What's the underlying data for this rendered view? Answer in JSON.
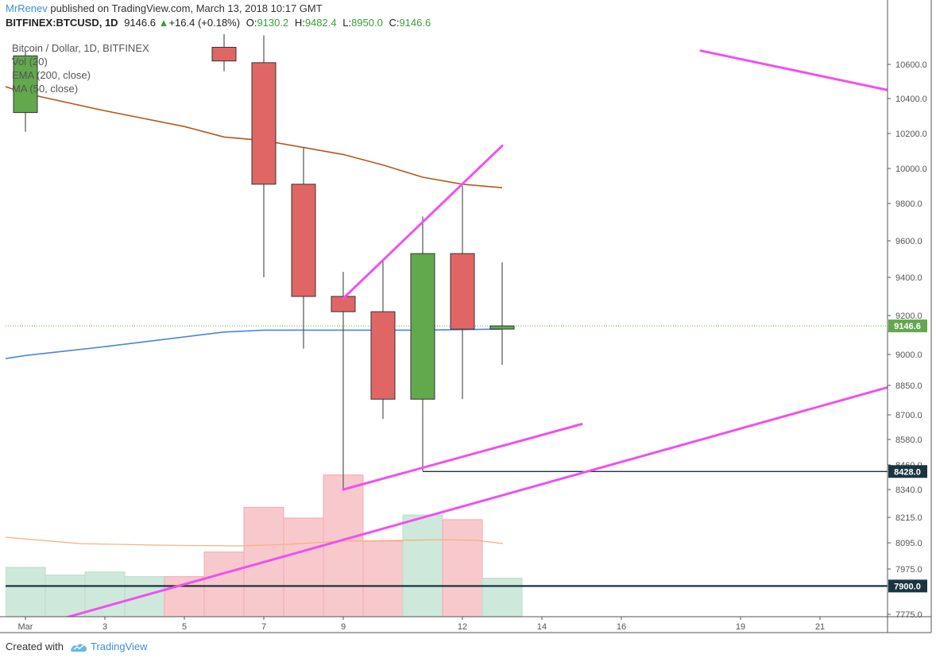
{
  "header": {
    "author": "MrRenev",
    "published_text": "published on TradingView.com, March 13, 2018 10:17 GMT",
    "symbol": "BITFINEX:BTCUSD, 1D",
    "last": "9146.6",
    "change": "+16.4 (+0.18%)",
    "open_label": "O:",
    "open": "9130.2",
    "high_label": "H:",
    "high": "9482.4",
    "low_label": "L:",
    "low": "8950.0",
    "close_label": "C:",
    "close": "9146.6"
  },
  "legend": {
    "line1": "Bitcoin / Dollar, 1D, BITFINEX",
    "line2": "Vol (20)",
    "line3": "EMA (200, close)",
    "line4": "MA (50, close)"
  },
  "footer": {
    "created_with": "Created with",
    "brand": "TradingView"
  },
  "colors": {
    "up": "#62a84d",
    "down": "#e06666",
    "wick": "#555555",
    "ema": "#b8571a",
    "ma": "#4a86d9",
    "trend": "#f050f0",
    "level": "#1a3540",
    "vol_up": "#cfe8dc",
    "vol_down": "#f8c9cc",
    "vol_ma": "#f5b07a"
  },
  "chart_data": {
    "type": "candlestick",
    "x_ticks": [
      "Mar",
      "3",
      "5",
      "7",
      "9",
      "12",
      "14",
      "16",
      "19",
      "21"
    ],
    "y_ticks": [
      "10600.0",
      "10400.0",
      "10200.0",
      "10000.0",
      "9800.0",
      "9600.0",
      "9400.0",
      "9200.0",
      "9000.0",
      "8850.0",
      "8700.0",
      "8580.0",
      "8460.0",
      "8340.0",
      "8215.0",
      "8095.0",
      "7975.0",
      "7775.0"
    ],
    "candles": [
      {
        "date": "Mar 1",
        "open": 10320,
        "high": 10680,
        "low": 10210,
        "close": 10650
      },
      {
        "date": "Mar 6",
        "open": 10700,
        "high": 10780,
        "low": 10560,
        "close": 10620
      },
      {
        "date": "Mar 7",
        "open": 10610,
        "high": 10770,
        "low": 9400,
        "close": 9910
      },
      {
        "date": "Mar 8",
        "open": 9910,
        "high": 10120,
        "low": 9030,
        "close": 9300
      },
      {
        "date": "Mar 9",
        "open": 9300,
        "high": 9430,
        "low": 8340,
        "close": 9220
      },
      {
        "date": "Mar 10",
        "open": 9220,
        "high": 9500,
        "low": 8680,
        "close": 8780
      },
      {
        "date": "Mar 11",
        "open": 8780,
        "high": 9730,
        "low": 8430,
        "close": 9530
      },
      {
        "date": "Mar 12",
        "open": 9530,
        "high": 9900,
        "low": 8780,
        "close": 9130
      },
      {
        "date": "Mar 13",
        "open": 9130.2,
        "high": 9482.4,
        "low": 8950.0,
        "close": 9146.6
      }
    ],
    "volume": [
      {
        "date": "Mar 1",
        "dir": "up",
        "rel": 0.32
      },
      {
        "date": "Mar 2",
        "dir": "up",
        "rel": 0.27
      },
      {
        "date": "Mar 3",
        "dir": "up",
        "rel": 0.29
      },
      {
        "date": "Mar 4",
        "dir": "up",
        "rel": 0.26
      },
      {
        "date": "Mar 5",
        "dir": "down",
        "rel": 0.26
      },
      {
        "date": "Mar 6",
        "dir": "down",
        "rel": 0.42
      },
      {
        "date": "Mar 7",
        "dir": "down",
        "rel": 0.71
      },
      {
        "date": "Mar 8",
        "dir": "down",
        "rel": 0.64
      },
      {
        "date": "Mar 9",
        "dir": "down",
        "rel": 0.92
      },
      {
        "date": "Mar 10",
        "dir": "down",
        "rel": 0.49
      },
      {
        "date": "Mar 11",
        "dir": "up",
        "rel": 0.66
      },
      {
        "date": "Mar 12",
        "dir": "down",
        "rel": 0.63
      },
      {
        "date": "Mar 13",
        "dir": "up",
        "rel": 0.25
      }
    ],
    "ema_200": [
      {
        "date": "Feb 28",
        "value": 10470
      },
      {
        "date": "Mar 1",
        "value": 10430
      },
      {
        "date": "Mar 3",
        "value": 10330
      },
      {
        "date": "Mar 5",
        "value": 10240
      },
      {
        "date": "Mar 6",
        "value": 10180
      },
      {
        "date": "Mar 7",
        "value": 10160
      },
      {
        "date": "Mar 8",
        "value": 10120
      },
      {
        "date": "Mar 9",
        "value": 10080
      },
      {
        "date": "Mar 10",
        "value": 10020
      },
      {
        "date": "Mar 11",
        "value": 9950
      },
      {
        "date": "Mar 12",
        "value": 9910
      },
      {
        "date": "Mar 13",
        "value": 9890
      }
    ],
    "ma_50": [
      {
        "date": "Feb 28",
        "value": 8980
      },
      {
        "date": "Mar 1",
        "value": 8995
      },
      {
        "date": "Mar 3",
        "value": 9040
      },
      {
        "date": "Mar 5",
        "value": 9090
      },
      {
        "date": "Mar 6",
        "value": 9115
      },
      {
        "date": "Mar 7",
        "value": 9125
      },
      {
        "date": "Mar 9",
        "value": 9125
      },
      {
        "date": "Mar 11",
        "value": 9125
      },
      {
        "date": "Mar 13",
        "value": 9130
      }
    ],
    "horizontal_levels": [
      {
        "label": "8428.0",
        "value": 8428.0,
        "from": "Mar 11"
      },
      {
        "label": "7900.0",
        "value": 7900.0,
        "from": "Feb 28"
      }
    ],
    "last_price_label": "9146.6",
    "trendlines": [
      {
        "from": {
          "date": "Mar 9",
          "value": 9290
        },
        "to": {
          "date": "Mar 13",
          "value": 10130
        }
      },
      {
        "from": {
          "date": "Mar 9",
          "value": 8340
        },
        "to": {
          "date": "Mar 15",
          "value": 8655
        }
      },
      {
        "from": {
          "date": "Mar 2",
          "value": 7760
        },
        "to": {
          "date": "Mar 22.7",
          "value": 8840
        }
      },
      {
        "from": {
          "date": "Mar 18",
          "value": 10680
        },
        "to": {
          "date": "Mar 22.7",
          "value": 10450
        }
      }
    ]
  }
}
